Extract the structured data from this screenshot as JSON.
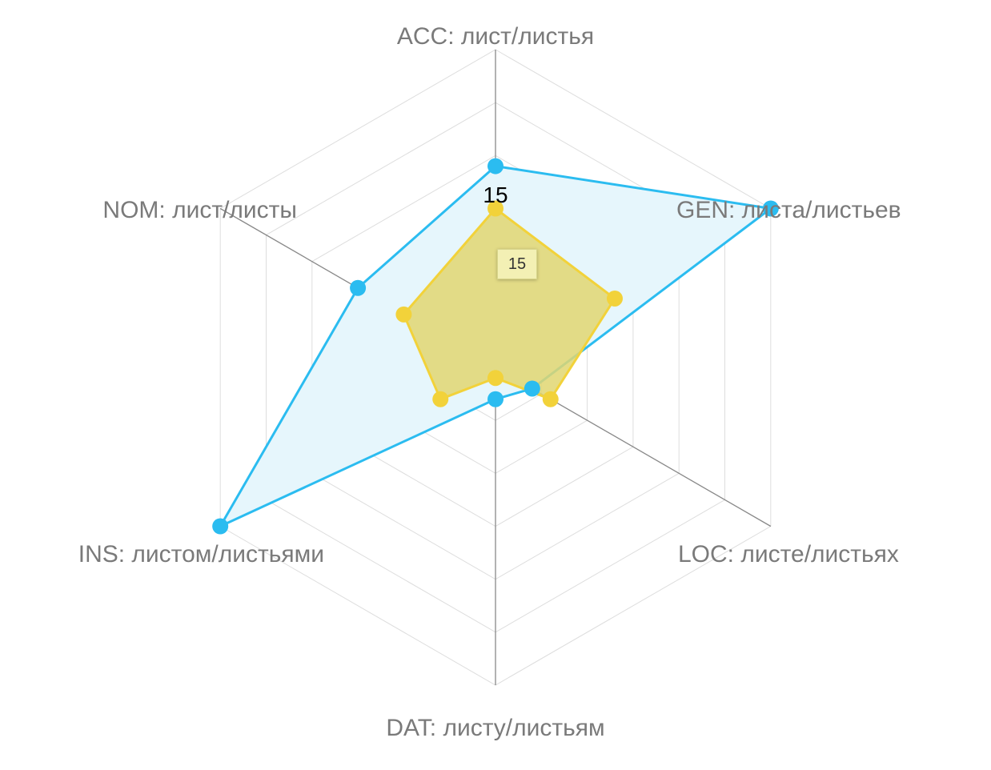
{
  "chart_data": {
    "type": "radar",
    "axes": [
      "ACC: лист/листья",
      "GEN: листа/листьев",
      "LOC: листе/листьях",
      "DAT: листу/листьям",
      "INS: листом/листьями",
      "NOM: лист/листы"
    ],
    "rlim": [
      0,
      30
    ],
    "ring_count": 6,
    "grid": true,
    "series": [
      {
        "values": [
          19,
          30,
          4,
          3,
          30,
          15
        ],
        "color": "#2bbcf0",
        "fill": "#e6f6fc"
      },
      {
        "values": [
          15,
          13,
          6,
          1,
          6,
          10
        ],
        "color": "#f2d23a",
        "fill": "#e1d671"
      }
    ],
    "value_label": "15",
    "tooltip": "15"
  }
}
